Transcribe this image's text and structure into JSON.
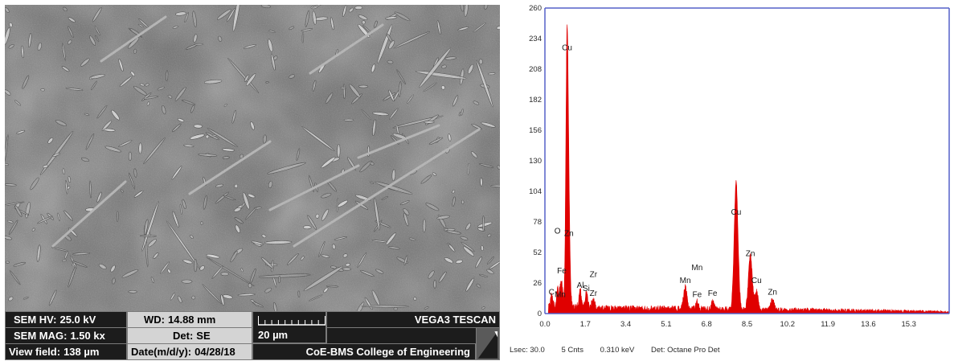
{
  "sem": {
    "hv_label": "SEM HV:",
    "hv_value": "25.0 kV",
    "wd_label": "WD:",
    "wd_value": "14.88 mm",
    "brand": "VEGA3 TESCAN",
    "mag_label": "SEM MAG:",
    "mag_value": "1.50 kx",
    "det_label": "Det:",
    "det_value": "SE",
    "scale_label": "20 µm",
    "vf_label": "View field:",
    "vf_value": "138 µm",
    "date_label": "Date(m/d/y):",
    "date_value": "04/28/18",
    "institution": "CoE-BMS College of Engineering",
    "colors": {
      "bar_dark": "#1c1c1c",
      "bar_light": "#d4d4d4",
      "image_base": "#6e6e6e"
    }
  },
  "eds": {
    "footer": {
      "lsec": "Lsec: 30.0",
      "cnts": "5 Cnts",
      "kev": "0.310 keV",
      "det": "Det: Octane Pro Det"
    }
  },
  "chart_data": {
    "type": "area",
    "title": "",
    "xlabel": "",
    "ylabel": "",
    "xlim": [
      0,
      17.0
    ],
    "ylim": [
      0,
      260
    ],
    "x_ticks": [
      0.0,
      1.7,
      3.4,
      5.1,
      6.8,
      8.5,
      10.2,
      11.9,
      13.6,
      15.3
    ],
    "x_tick_labels": [
      "0.0",
      "1.7",
      "3.4",
      "5.1",
      "6.8",
      "8.5",
      "10.2",
      "11.9",
      "13.6",
      "15.3"
    ],
    "y_ticks": [
      0,
      26,
      52,
      78,
      104,
      130,
      156,
      182,
      208,
      234,
      260
    ],
    "y_tick_labels": [
      "0",
      "26",
      "52",
      "78",
      "104",
      "130",
      "156",
      "182",
      "208",
      "234",
      "260"
    ],
    "color": "#e00000",
    "background_level": 5,
    "peaks": [
      {
        "x": 0.28,
        "y": 10,
        "w": 0.05
      },
      {
        "x": 0.53,
        "y": 14,
        "w": 0.05
      },
      {
        "x": 0.64,
        "y": 9,
        "w": 0.05
      },
      {
        "x": 0.71,
        "y": 17,
        "w": 0.05
      },
      {
        "x": 0.93,
        "y": 222,
        "w": 0.05
      },
      {
        "x": 1.01,
        "y": 60,
        "w": 0.05
      },
      {
        "x": 1.49,
        "y": 14,
        "w": 0.05
      },
      {
        "x": 1.74,
        "y": 12,
        "w": 0.05
      },
      {
        "x": 2.04,
        "y": 9,
        "w": 0.05
      },
      {
        "x": 5.9,
        "y": 18,
        "w": 0.07
      },
      {
        "x": 6.4,
        "y": 6,
        "w": 0.06
      },
      {
        "x": 7.05,
        "y": 6,
        "w": 0.06
      },
      {
        "x": 8.04,
        "y": 108,
        "w": 0.08
      },
      {
        "x": 8.64,
        "y": 46,
        "w": 0.08
      },
      {
        "x": 8.9,
        "y": 15,
        "w": 0.07
      },
      {
        "x": 9.57,
        "y": 9,
        "w": 0.07
      }
    ],
    "annotations": [
      {
        "text": "Cu",
        "x": 0.93,
        "y": 222
      },
      {
        "text": "O",
        "x": 0.53,
        "y": 66
      },
      {
        "text": "Zn",
        "x": 1.01,
        "y": 64
      },
      {
        "text": "Fe",
        "x": 0.71,
        "y": 32
      },
      {
        "text": "Al",
        "x": 1.49,
        "y": 20
      },
      {
        "text": "Zr",
        "x": 2.04,
        "y": 29
      },
      {
        "text": "Si",
        "x": 1.74,
        "y": 17
      },
      {
        "text": "C",
        "x": 0.28,
        "y": 14
      },
      {
        "text": "Mn",
        "x": 0.64,
        "y": 12
      },
      {
        "text": "Zr",
        "x": 2.04,
        "y": 13
      },
      {
        "text": "Mn",
        "x": 6.4,
        "y": 35
      },
      {
        "text": "Mn",
        "x": 5.9,
        "y": 24
      },
      {
        "text": "Fe",
        "x": 6.4,
        "y": 12
      },
      {
        "text": "Fe",
        "x": 7.05,
        "y": 13
      },
      {
        "text": "Cu",
        "x": 8.04,
        "y": 82
      },
      {
        "text": "Zn",
        "x": 8.64,
        "y": 47
      },
      {
        "text": "Cu",
        "x": 8.9,
        "y": 24
      },
      {
        "text": "Zn",
        "x": 9.57,
        "y": 14
      }
    ]
  }
}
